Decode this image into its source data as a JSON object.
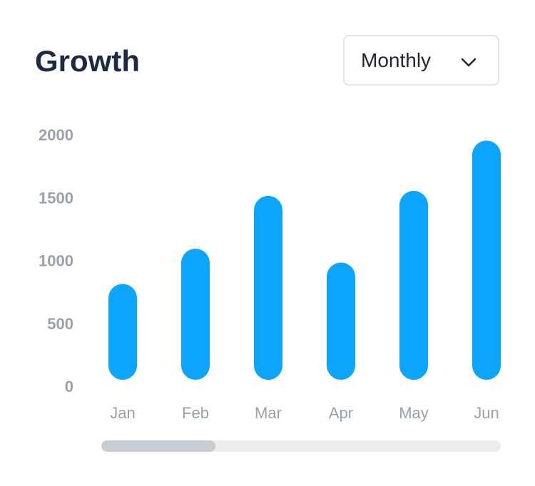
{
  "header": {
    "title": "Growth",
    "period_select": {
      "value": "Monthly"
    }
  },
  "colors": {
    "bar": "#0da5fc",
    "axis_text": "#99a1ab",
    "title": "#1c2b42"
  },
  "icons": {
    "dropdown": "chevron-down-icon"
  },
  "chart_data": {
    "type": "bar",
    "title": "Growth",
    "xlabel": "",
    "ylabel": "",
    "categories": [
      "Jan",
      "Feb",
      "Mar",
      "Apr",
      "May",
      "Jun"
    ],
    "values": [
      700,
      980,
      1400,
      870,
      1440,
      1840
    ],
    "ylim": [
      0,
      2000
    ],
    "yticks": [
      0,
      500,
      1000,
      1500,
      2000
    ],
    "grid": false,
    "bar_style": "rounded"
  }
}
